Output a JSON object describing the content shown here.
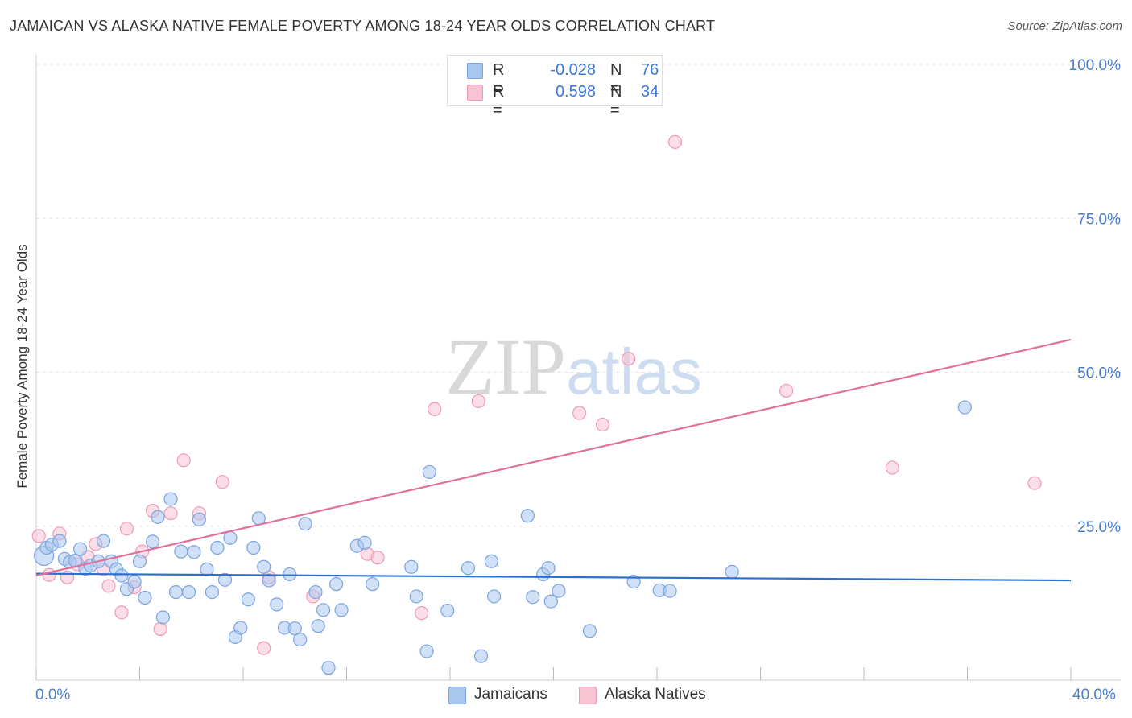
{
  "title": "JAMAICAN VS ALASKA NATIVE FEMALE POVERTY AMONG 18-24 YEAR OLDS CORRELATION CHART",
  "source": "Source: ZipAtlas.com",
  "watermark": {
    "zip": "ZIP",
    "atlas": "atlas"
  },
  "legend": {
    "r_label": "R =",
    "n_label": "N =",
    "rows": [
      {
        "series": "Jamaicans",
        "r": "-0.028",
        "n": "76",
        "color": "#a9c6ef",
        "stroke": "#7aa3e0"
      },
      {
        "series": "Alaska Natives",
        "r": "0.598",
        "n": "34",
        "color": "#f8c3d3",
        "stroke": "#ef9ab5"
      }
    ]
  },
  "bottom_legend": [
    "Jamaicans",
    "Alaska Natives"
  ],
  "colors": {
    "blue_fill": "#a9c6ef",
    "blue_stroke": "#7aa3e0",
    "blue_line": "#2f6fcc",
    "pink_fill": "#f8c3d3",
    "pink_stroke": "#ef9ab5",
    "pink_line": "#e0709a",
    "tick_text": "#4a7cc9",
    "grid": "#e2e2e2"
  },
  "chart_data": {
    "type": "scatter",
    "title": "JAMAICAN VS ALASKA NATIVE FEMALE POVERTY AMONG 18-24 YEAR OLDS CORRELATION CHART",
    "xlabel": "",
    "ylabel": "Female Poverty Among 18-24 Year Olds",
    "xlim": [
      0,
      40
    ],
    "ylim": [
      0,
      100
    ],
    "x_tick_labels": [
      "0.0%",
      "40.0%"
    ],
    "y_ticks": [
      25,
      50,
      75,
      100
    ],
    "y_tick_labels": [
      "25.0%",
      "50.0%",
      "75.0%",
      "100.0%"
    ],
    "grid": true,
    "series": [
      {
        "name": "Jamaicans",
        "trend": {
          "x": [
            0,
            40
          ],
          "y": [
            17.3,
            16.2
          ]
        },
        "points": [
          {
            "x": 0.3,
            "y": 20.2,
            "big": true
          },
          {
            "x": 0.4,
            "y": 21.5
          },
          {
            "x": 0.6,
            "y": 22.0
          },
          {
            "x": 0.9,
            "y": 22.6
          },
          {
            "x": 1.1,
            "y": 19.7
          },
          {
            "x": 1.3,
            "y": 19.2
          },
          {
            "x": 1.5,
            "y": 19.4
          },
          {
            "x": 1.7,
            "y": 21.3
          },
          {
            "x": 1.9,
            "y": 18.1
          },
          {
            "x": 2.1,
            "y": 18.6
          },
          {
            "x": 2.4,
            "y": 19.3
          },
          {
            "x": 2.6,
            "y": 22.6
          },
          {
            "x": 2.9,
            "y": 19.3
          },
          {
            "x": 3.1,
            "y": 18.0
          },
          {
            "x": 3.3,
            "y": 17.0
          },
          {
            "x": 3.5,
            "y": 14.8
          },
          {
            "x": 3.8,
            "y": 16.0
          },
          {
            "x": 4.0,
            "y": 19.3
          },
          {
            "x": 4.2,
            "y": 13.4
          },
          {
            "x": 4.5,
            "y": 22.5
          },
          {
            "x": 4.7,
            "y": 26.5
          },
          {
            "x": 4.9,
            "y": 10.2
          },
          {
            "x": 5.2,
            "y": 29.4
          },
          {
            "x": 5.4,
            "y": 14.3
          },
          {
            "x": 5.6,
            "y": 20.9
          },
          {
            "x": 5.9,
            "y": 14.3
          },
          {
            "x": 6.1,
            "y": 20.8
          },
          {
            "x": 6.3,
            "y": 26.1
          },
          {
            "x": 6.6,
            "y": 18.0
          },
          {
            "x": 6.8,
            "y": 14.3
          },
          {
            "x": 7.0,
            "y": 21.5
          },
          {
            "x": 7.3,
            "y": 16.3
          },
          {
            "x": 7.5,
            "y": 23.1
          },
          {
            "x": 7.7,
            "y": 7.0
          },
          {
            "x": 7.9,
            "y": 8.5
          },
          {
            "x": 8.2,
            "y": 13.1
          },
          {
            "x": 8.4,
            "y": 21.5
          },
          {
            "x": 8.6,
            "y": 26.3
          },
          {
            "x": 8.8,
            "y": 18.4
          },
          {
            "x": 9.0,
            "y": 16.2
          },
          {
            "x": 9.3,
            "y": 12.3
          },
          {
            "x": 9.6,
            "y": 8.5
          },
          {
            "x": 9.8,
            "y": 17.2
          },
          {
            "x": 10.0,
            "y": 8.4
          },
          {
            "x": 10.2,
            "y": 6.6
          },
          {
            "x": 10.4,
            "y": 25.4
          },
          {
            "x": 10.8,
            "y": 14.3
          },
          {
            "x": 10.9,
            "y": 8.8
          },
          {
            "x": 11.1,
            "y": 11.4
          },
          {
            "x": 11.3,
            "y": 2.0
          },
          {
            "x": 11.6,
            "y": 15.6
          },
          {
            "x": 11.8,
            "y": 11.4
          },
          {
            "x": 12.4,
            "y": 21.8
          },
          {
            "x": 12.7,
            "y": 22.3
          },
          {
            "x": 13.0,
            "y": 15.6
          },
          {
            "x": 14.5,
            "y": 18.4
          },
          {
            "x": 14.7,
            "y": 13.6
          },
          {
            "x": 15.1,
            "y": 4.7
          },
          {
            "x": 15.2,
            "y": 33.8
          },
          {
            "x": 15.9,
            "y": 11.3
          },
          {
            "x": 16.7,
            "y": 18.2
          },
          {
            "x": 17.2,
            "y": 3.9
          },
          {
            "x": 17.6,
            "y": 19.3
          },
          {
            "x": 17.7,
            "y": 13.6
          },
          {
            "x": 19.0,
            "y": 26.7
          },
          {
            "x": 19.2,
            "y": 13.5
          },
          {
            "x": 19.6,
            "y": 17.2
          },
          {
            "x": 19.8,
            "y": 18.2
          },
          {
            "x": 19.9,
            "y": 12.8
          },
          {
            "x": 20.2,
            "y": 14.5
          },
          {
            "x": 21.4,
            "y": 8.0
          },
          {
            "x": 23.1,
            "y": 16.0
          },
          {
            "x": 24.1,
            "y": 14.6
          },
          {
            "x": 24.5,
            "y": 14.5
          },
          {
            "x": 26.9,
            "y": 17.6
          },
          {
            "x": 35.9,
            "y": 44.3
          }
        ]
      },
      {
        "name": "Alaska Natives",
        "trend": {
          "x": [
            0,
            40
          ],
          "y": [
            17.0,
            55.3
          ]
        },
        "points": [
          {
            "x": 0.1,
            "y": 23.4
          },
          {
            "x": 0.5,
            "y": 17.1
          },
          {
            "x": 0.9,
            "y": 23.8
          },
          {
            "x": 1.2,
            "y": 16.7
          },
          {
            "x": 1.6,
            "y": 18.8
          },
          {
            "x": 2.0,
            "y": 20.0
          },
          {
            "x": 2.3,
            "y": 22.1
          },
          {
            "x": 2.6,
            "y": 18.0
          },
          {
            "x": 2.8,
            "y": 15.3
          },
          {
            "x": 3.3,
            "y": 11.0
          },
          {
            "x": 3.5,
            "y": 24.6
          },
          {
            "x": 3.8,
            "y": 15.1
          },
          {
            "x": 4.1,
            "y": 20.9
          },
          {
            "x": 4.5,
            "y": 27.5
          },
          {
            "x": 4.8,
            "y": 8.3
          },
          {
            "x": 5.2,
            "y": 27.1
          },
          {
            "x": 5.7,
            "y": 35.7
          },
          {
            "x": 6.3,
            "y": 27.1
          },
          {
            "x": 7.2,
            "y": 32.2
          },
          {
            "x": 8.8,
            "y": 5.2
          },
          {
            "x": 9.0,
            "y": 16.7
          },
          {
            "x": 10.7,
            "y": 13.6
          },
          {
            "x": 12.8,
            "y": 20.5
          },
          {
            "x": 13.2,
            "y": 19.9
          },
          {
            "x": 14.9,
            "y": 10.9
          },
          {
            "x": 15.4,
            "y": 44.0
          },
          {
            "x": 17.1,
            "y": 45.3
          },
          {
            "x": 21.0,
            "y": 43.4
          },
          {
            "x": 21.9,
            "y": 41.5
          },
          {
            "x": 22.9,
            "y": 52.2
          },
          {
            "x": 24.7,
            "y": 87.4
          },
          {
            "x": 29.0,
            "y": 47.0
          },
          {
            "x": 33.1,
            "y": 34.5
          },
          {
            "x": 38.6,
            "y": 32.0
          }
        ]
      }
    ]
  }
}
